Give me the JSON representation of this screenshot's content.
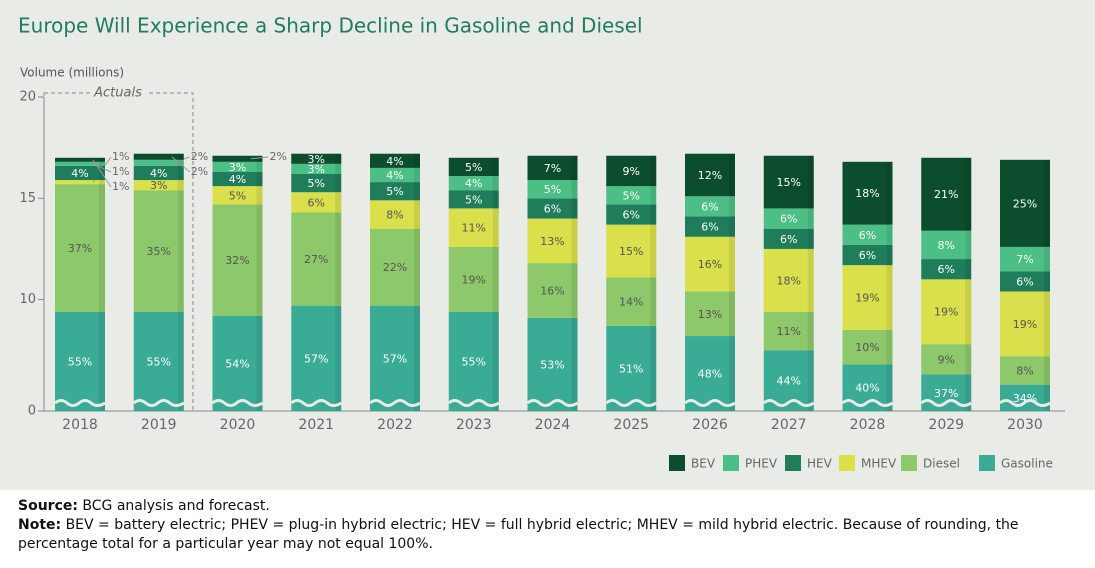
{
  "chart_data": {
    "type": "stacked_bar",
    "title": "Europe Will Experience a Sharp Decline in Gasoline and Diesel",
    "y_label": "Volume (millions)",
    "annotation": "Actuals",
    "categories": [
      "2018",
      "2019",
      "2020",
      "2021",
      "2022",
      "2023",
      "2024",
      "2025",
      "2026",
      "2027",
      "2028",
      "2029",
      "2030"
    ],
    "ylim": [
      0,
      20
    ],
    "yticks": [
      0,
      10,
      15,
      20
    ],
    "axis_break": [
      0,
      4.5
    ],
    "legend": "bottom-right",
    "series": [
      {
        "name": "Gasoline",
        "color": "#3aab95",
        "values": [
          9.4,
          9.4,
          9.2,
          9.7,
          9.7,
          9.4,
          9.1,
          8.7,
          8.2,
          7.5,
          6.8,
          6.3,
          5.8
        ],
        "labels": [
          "55%",
          "55%",
          "54%",
          "57%",
          "57%",
          "55%",
          "53%",
          "51%",
          "48%",
          "44%",
          "40%",
          "37%",
          "34%"
        ]
      },
      {
        "name": "Diesel",
        "color": "#8dc86a",
        "values": [
          6.3,
          6.0,
          5.5,
          4.6,
          3.8,
          3.2,
          2.7,
          2.4,
          2.2,
          1.9,
          1.7,
          1.5,
          1.4
        ],
        "labels": [
          "37%",
          "35%",
          "32%",
          "27%",
          "22%",
          "19%",
          "16%",
          "14%",
          "13%",
          "11%",
          "10%",
          "9%",
          "8%"
        ]
      },
      {
        "name": "MHEV",
        "color": "#d9e04b",
        "values": [
          0.2,
          0.5,
          0.9,
          1.0,
          1.4,
          1.9,
          2.2,
          2.6,
          2.7,
          3.1,
          3.2,
          3.2,
          3.2
        ],
        "labels": [
          "1%",
          "3%",
          "5%",
          "6%",
          "8%",
          "11%",
          "13%",
          "15%",
          "16%",
          "18%",
          "19%",
          "19%",
          "19%"
        ]
      },
      {
        "name": "HEV",
        "color": "#1f7d5c",
        "values": [
          0.7,
          0.7,
          0.7,
          0.9,
          0.9,
          0.9,
          1.0,
          1.0,
          1.0,
          1.0,
          1.0,
          1.0,
          1.0
        ],
        "labels": [
          "4%",
          "4%",
          "4%",
          "5%",
          "5%",
          "5%",
          "6%",
          "6%",
          "6%",
          "6%",
          "6%",
          "6%",
          "6%"
        ]
      },
      {
        "name": "PHEV",
        "color": "#4bbf85",
        "values": [
          0.2,
          0.3,
          0.5,
          0.5,
          0.7,
          0.7,
          0.9,
          0.9,
          1.0,
          1.0,
          1.0,
          1.4,
          1.2
        ],
        "labels": [
          "1%",
          "2%",
          "3%",
          "3%",
          "4%",
          "4%",
          "5%",
          "5%",
          "6%",
          "6%",
          "6%",
          "8%",
          "7%"
        ]
      },
      {
        "name": "BEV",
        "color": "#0b4d2c",
        "values": [
          0.2,
          0.3,
          0.3,
          0.5,
          0.7,
          0.9,
          1.2,
          1.5,
          2.1,
          2.6,
          3.1,
          3.6,
          4.3
        ],
        "labels": [
          "1%",
          "2%",
          "2%",
          "3%",
          "4%",
          "5%",
          "7%",
          "9%",
          "12%",
          "15%",
          "18%",
          "21%",
          "25%"
        ]
      }
    ]
  },
  "source": {
    "label": "Source:",
    "text": "BCG analysis and forecast."
  },
  "note": {
    "label": "Note:",
    "text": "BEV = battery electric; PHEV = plug-in hybrid electric; HEV = full hybrid electric; MHEV = mild hybrid electric. Because of rounding, the percentage total for a particular year may not equal 100%."
  }
}
